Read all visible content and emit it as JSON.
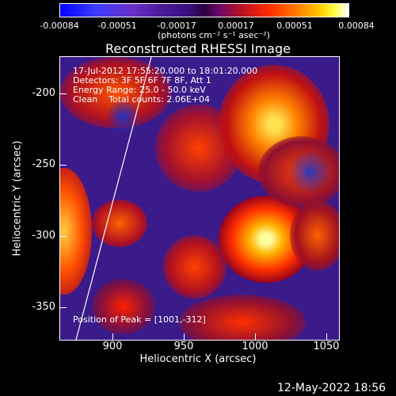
{
  "colorbar": {
    "ticks": [
      "-0.00084",
      "-0.00051",
      "-0.00017",
      "0.00017",
      "0.00051",
      "0.00084"
    ],
    "units": "(photons cm⁻² s⁻¹ asec⁻²)"
  },
  "plot": {
    "title": "Reconstructed RHESSI Image",
    "annotations": [
      "17-Jul-2012 17:55:20.000 to 18:01:20.000",
      "Detectors: 3F 5F 6F 7F 8F, Att 1",
      "Energy Range: 25.0 - 50.0 keV",
      "Clean    Total counts: 2.06E+04"
    ],
    "peak_text": "Position of Peak = [1001,-312]",
    "xlabel": "Heliocentric X (arcsec)",
    "ylabel": "Heliocentric Y (arcsec)",
    "xticks": [
      "900",
      "950",
      "1000",
      "1050"
    ],
    "yticks": [
      "-200",
      "-250",
      "-300",
      "-350"
    ]
  },
  "footer": {
    "timestamp": "12-May-2022 18:56"
  },
  "chart_data": {
    "type": "heatmap",
    "title": "Reconstructed RHESSI Image",
    "xlabel": "Heliocentric X (arcsec)",
    "ylabel": "Heliocentric Y (arcsec)",
    "xlim": [
      866,
      1061
    ],
    "ylim": [
      -370,
      -172
    ],
    "colorbar_range": [
      -0.00084,
      0.00084
    ],
    "peak": {
      "x": 1001,
      "y": -312
    }
  }
}
